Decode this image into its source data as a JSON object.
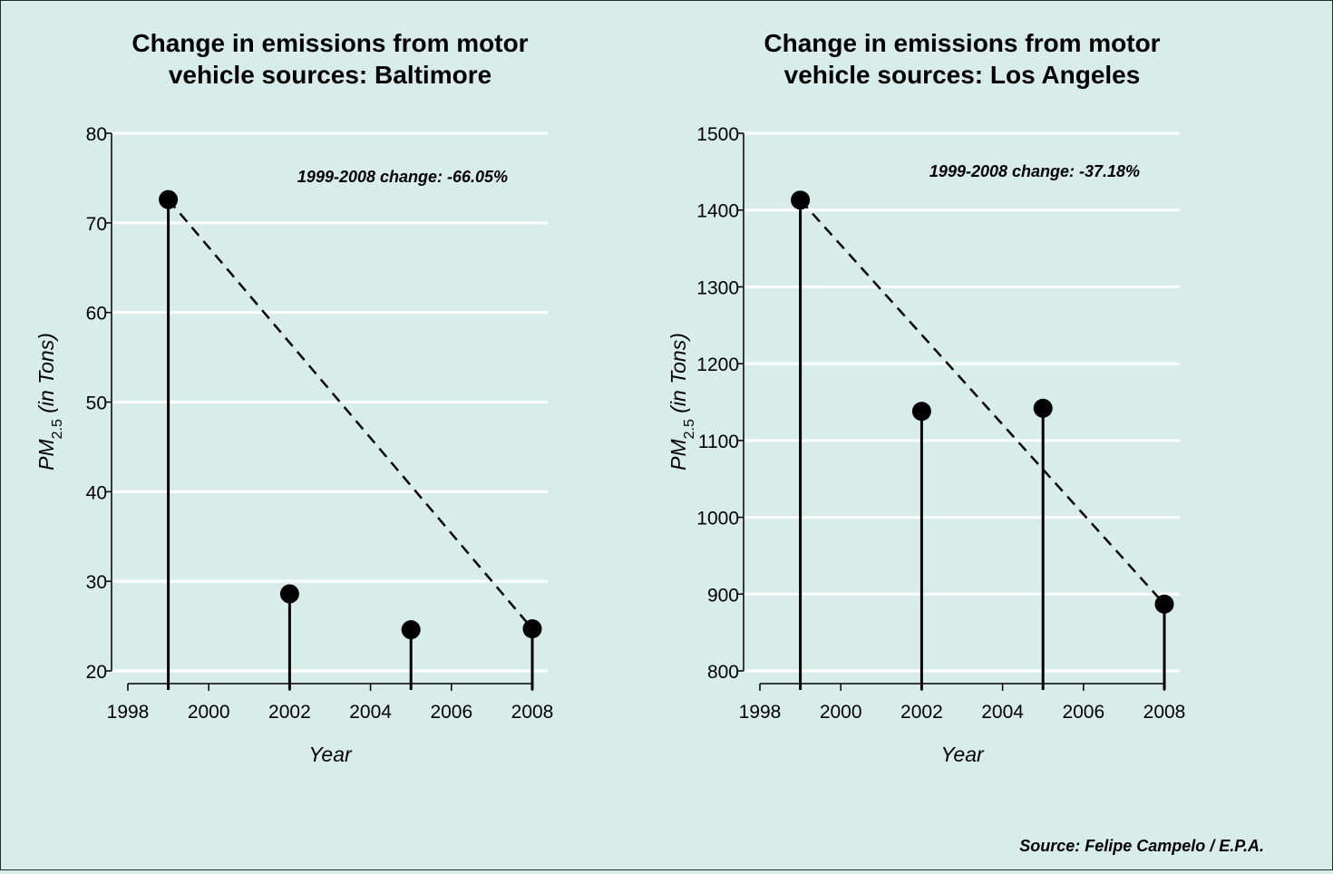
{
  "source": "Source: Felipe Campelo / E.P.A.",
  "chart_data": [
    {
      "type": "lollipop",
      "title_lines": [
        "Change in emissions from motor",
        "vehicle sources: Baltimore"
      ],
      "xlabel": "Year",
      "ylabel": {
        "main": "PM",
        "sub": "2.5",
        "rest": " (in Tons)"
      },
      "annotation": "1999-2008 change: -66.05%",
      "xlim": [
        1998,
        2008.4
      ],
      "ylim": [
        20,
        80
      ],
      "x_ticks": [
        1998,
        2000,
        2002,
        2004,
        2006,
        2008
      ],
      "y_ticks": [
        20,
        30,
        40,
        50,
        60,
        70,
        80
      ],
      "x": [
        1999,
        2002,
        2005,
        2008
      ],
      "values": [
        72.6,
        28.6,
        24.6,
        24.7
      ],
      "trend": {
        "from": [
          1999,
          72.6
        ],
        "to": [
          2008,
          24.7
        ]
      },
      "grid": true
    },
    {
      "type": "lollipop",
      "title_lines": [
        "Change in emissions from motor",
        "vehicle sources: Los Angeles"
      ],
      "xlabel": "Year",
      "ylabel": {
        "main": "PM",
        "sub": "2.5",
        "rest": " (in Tons)"
      },
      "annotation": "1999-2008 change: -37.18%",
      "xlim": [
        1998,
        2008.4
      ],
      "ylim": [
        800,
        1500
      ],
      "x_ticks": [
        1998,
        2000,
        2002,
        2004,
        2006,
        2008
      ],
      "y_ticks": [
        800,
        900,
        1000,
        1100,
        1200,
        1300,
        1400,
        1500
      ],
      "x": [
        1999,
        2002,
        2005,
        2008
      ],
      "values": [
        1413,
        1138,
        1142,
        887
      ],
      "trend": {
        "from": [
          1999,
          1413
        ],
        "to": [
          2008,
          887
        ]
      },
      "grid": true
    }
  ]
}
